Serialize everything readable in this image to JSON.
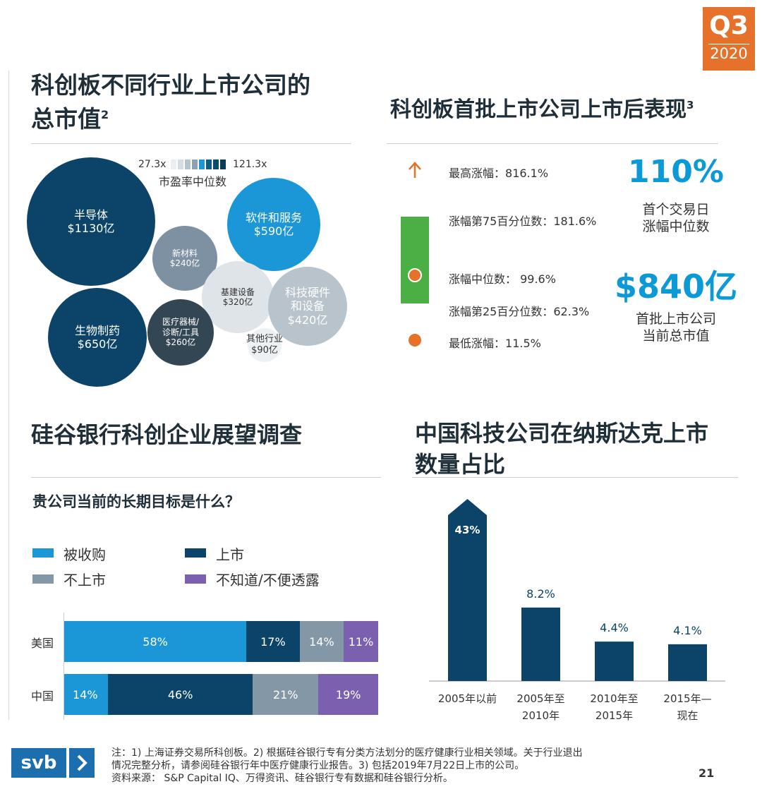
{
  "badge": {
    "quarter": "Q3",
    "year": "2020"
  },
  "s1": {
    "title_l1": "科创板不同行业上市公司的",
    "title_l2": "总市值",
    "title_sup": "2",
    "legend": {
      "min": "27.3x",
      "max": "121.3x",
      "caption": "市盈率中位数",
      "colors": [
        "#eceff2",
        "#d5dce2",
        "#b7c2cb",
        "#8fa0ae",
        "#1f96d6",
        "#0f5c85",
        "#0d4a6b",
        "#0b3c57"
      ]
    },
    "bubbles": [
      {
        "name": "半导体",
        "value": "$1130亿",
        "color": "#0b4468",
        "text": "#ffffff"
      },
      {
        "name": "软件和服务",
        "value": "$590亿",
        "color": "#1b96d6",
        "text": "#ffffff"
      },
      {
        "name": "新材料",
        "value": "$240亿",
        "color": "#7e91a2",
        "text": "#ffffff"
      },
      {
        "name": "基建设备",
        "value": "$320亿",
        "color": "#dfe4e8",
        "text": "#333333"
      },
      {
        "name": "科技硬件",
        "name2": "和设备",
        "value": "$420亿",
        "color": "#b8c3cc",
        "text": "#ffffff"
      },
      {
        "name": "生物制药",
        "value": "$650亿",
        "color": "#0b4468",
        "text": "#ffffff"
      },
      {
        "name": "医疗器械/",
        "name2": "诊断/工具",
        "value": "$260亿",
        "color": "#334654",
        "text": "#ffffff"
      },
      {
        "name": "其他行业",
        "value": "$90亿",
        "color": "#eef1f3",
        "text": "#333333"
      }
    ]
  },
  "s2": {
    "title": "科创板首批上市公司上市后表现",
    "title_sup": "3",
    "stats": [
      {
        "label": "最高涨幅：",
        "value": "816.1%"
      },
      {
        "label": "涨幅第75百分位数：",
        "value": "181.6%"
      },
      {
        "label": "涨幅中位数：",
        "value": "99.6%"
      },
      {
        "label": "涨幅第25百分位数：",
        "value": "62.3%"
      },
      {
        "label": "最低涨幅：",
        "value": "11.5%"
      }
    ],
    "kpi1": {
      "value": "110%",
      "l1": "首个交易日",
      "l2": "涨幅中位数"
    },
    "kpi2": {
      "value": "$840亿",
      "l1": "首批上市公司",
      "l2": "当前总市值"
    }
  },
  "s3": {
    "title": "硅谷银行科创企业展望调查",
    "question": "贵公司当前的长期目标是什么？",
    "legend": [
      {
        "label": "被收购",
        "color": "#1b96d6"
      },
      {
        "label": "上市",
        "color": "#0b4468"
      },
      {
        "label": "不上市",
        "color": "#8497a6"
      },
      {
        "label": "不知道/不便透露",
        "color": "#7b60b0"
      }
    ]
  },
  "s4": {
    "title_l1": "中国科技公司在纳斯达克上市",
    "title_l2": "数量占比"
  },
  "chart_data": [
    {
      "type": "bar",
      "orientation": "horizontal-stacked",
      "categories": [
        "美国",
        "中国"
      ],
      "series": [
        {
          "name": "被收购",
          "values": [
            58,
            14
          ],
          "labels": [
            "58%",
            "14%"
          ]
        },
        {
          "name": "上市",
          "values": [
            17,
            46
          ],
          "labels": [
            "17%",
            "46%"
          ]
        },
        {
          "name": "不上市",
          "values": [
            14,
            21
          ],
          "labels": [
            "14%",
            "21%"
          ]
        },
        {
          "name": "不知道/不便透露",
          "values": [
            11,
            19
          ],
          "labels": [
            "11%",
            "19%"
          ]
        }
      ]
    },
    {
      "type": "bar",
      "categories": [
        "2005年以前",
        "2005年至|2010年",
        "2010年至|2015年",
        "2015年—|现在"
      ],
      "values": [
        43,
        8.2,
        4.4,
        4.1
      ],
      "labels": [
        "43%",
        "8.2%",
        "4.4%",
        "4.1%"
      ],
      "axis_break_on_first": true
    }
  ],
  "footer": {
    "logo": "svb",
    "note_l1": "注：1) 上海证券交易所科创板。2) 根据硅谷银行专有分类方法划分的医疗健康行业相关领域。关于行业退出",
    "note_l2": "情况完整分析，请参阅硅谷银行年中医疗健康行业报告。3) 包括2019年7月22日上市的公司。",
    "source": "资料来源： S&P Capital IQ、万得资讯、硅谷银行专有数据和硅谷银行分析。",
    "page": "21"
  }
}
